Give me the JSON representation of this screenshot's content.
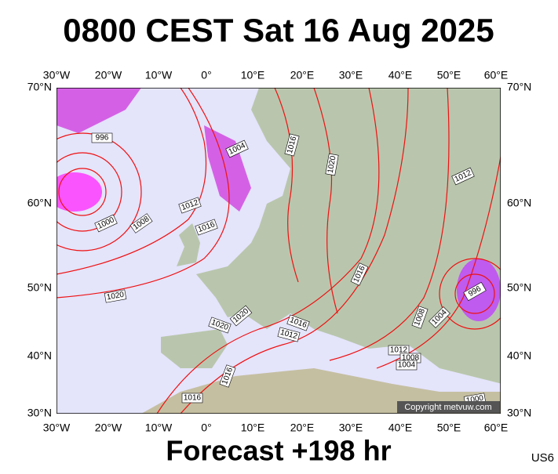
{
  "header": {
    "title": "0800 CEST Sat 16 Aug 2025"
  },
  "map": {
    "lon_labels": [
      "30°W",
      "20°W",
      "10°W",
      "0°",
      "10°E",
      "20°E",
      "30°E",
      "40°E",
      "50°E",
      "60°E"
    ],
    "lat_labels": [
      "70°N",
      "60°N",
      "50°N",
      "40°N",
      "30°N"
    ],
    "isobar_labels": [
      "996",
      "1004",
      "1016",
      "1020",
      "1012",
      "1000",
      "1008",
      "1012",
      "1016",
      "1016",
      "996",
      "1020",
      "1008",
      "1004",
      "1020",
      "1020",
      "1016",
      "1012",
      "1012",
      "1008",
      "1004",
      "1016",
      "1016",
      "1000"
    ],
    "copyright": "Copyright metvuw.com"
  },
  "footer": {
    "forecast": "Forecast +198 hr",
    "code": "US6"
  }
}
